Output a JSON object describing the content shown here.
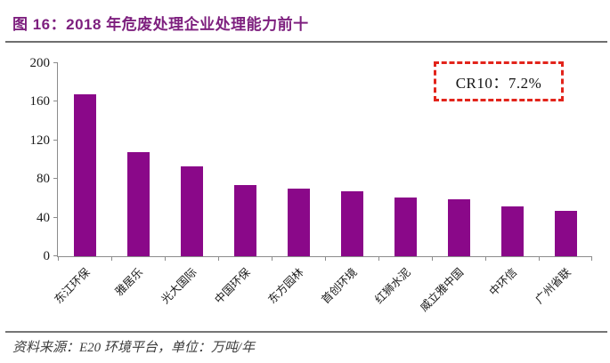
{
  "page": {
    "title": "图 16：2018 年危废处理企业处理能力前十",
    "source_note": "资料来源：E20 环境平台，单位：万吨/年"
  },
  "annotation": {
    "text": "CR10：7.2%"
  },
  "chart_data": {
    "type": "bar",
    "title": "2018 年危废处理企业处理能力前十",
    "xlabel": "",
    "ylabel": "",
    "unit": "万吨/年",
    "categories": [
      "东江环保",
      "雅居乐",
      "光大国际",
      "中国环保",
      "东方园林",
      "首创环境",
      "红狮水泥",
      "威立雅中国",
      "中环信",
      "广州省联"
    ],
    "values": [
      168,
      108,
      93,
      74,
      70,
      67,
      61,
      59,
      52,
      47
    ],
    "ylim": [
      0,
      200
    ],
    "yticks": [
      0,
      40,
      80,
      120,
      160,
      200
    ],
    "grid": false,
    "legend": null,
    "annotations": [
      "CR10：7.2%"
    ],
    "x_label_rotation_deg": 45
  },
  "style": {
    "title_color": "#7d1f7e",
    "bar_color": "#8a0889",
    "annotation_border_color": "#e2241b",
    "annotation_text_color": "#141414",
    "axis_color": "#8c8c8c",
    "tick_text_color": "#1a1a1a",
    "divider_color": "#6f6f6f",
    "source_text_color": "#3c3c3c"
  }
}
